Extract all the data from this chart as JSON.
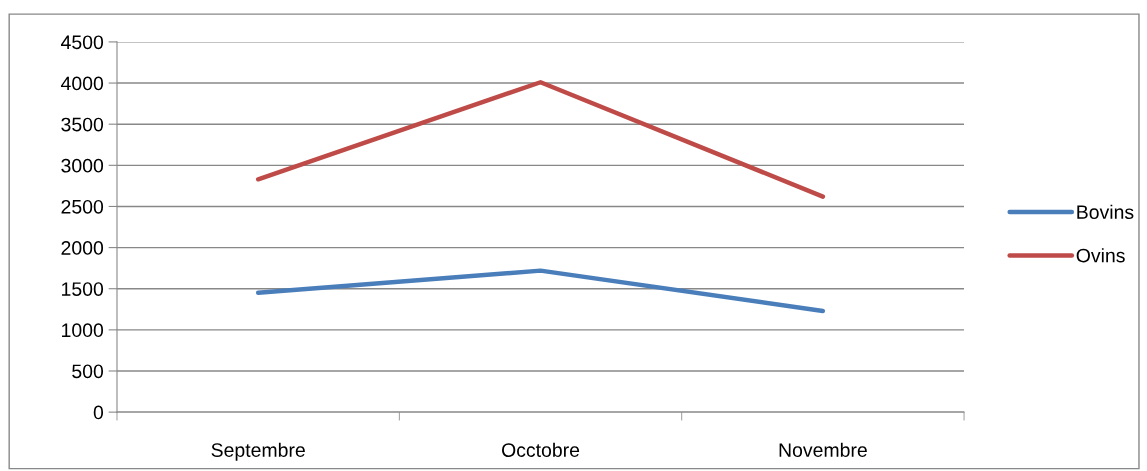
{
  "chart_data": {
    "type": "line",
    "categories": [
      "Septembre",
      "Occtobre",
      "Novembre"
    ],
    "series": [
      {
        "name": "Bovins",
        "color": "#4a7ebb",
        "values": [
          1450,
          1720,
          1230
        ]
      },
      {
        "name": "Ovins",
        "color": "#be4b48",
        "values": [
          2830,
          4010,
          2620
        ]
      }
    ],
    "ylim": [
      0,
      4500
    ],
    "yticks": [
      0,
      500,
      1000,
      1500,
      2000,
      2500,
      3000,
      3500,
      4000,
      4500
    ],
    "grid": "y",
    "legend": "right",
    "marker": "none",
    "line_style": "solid"
  }
}
